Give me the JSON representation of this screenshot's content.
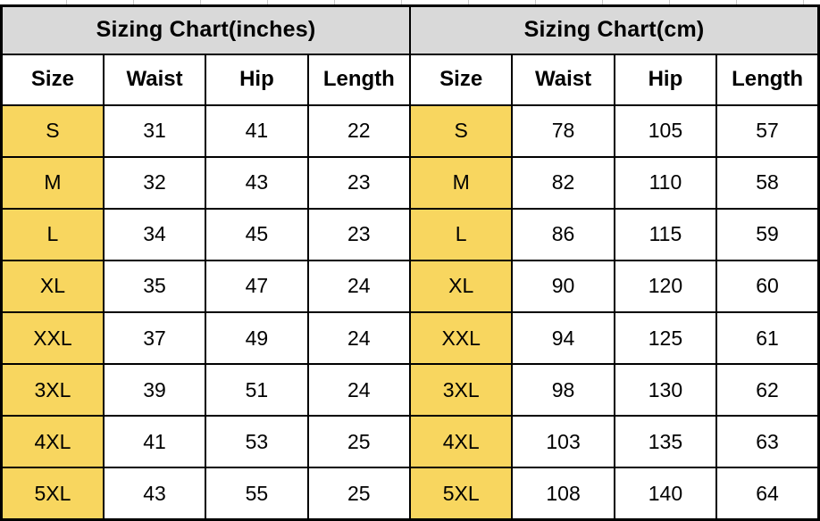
{
  "chart_data": [
    {
      "type": "table",
      "title": "Sizing Chart(inches)",
      "columns": [
        "Size",
        "Waist",
        "Hip",
        "Length"
      ],
      "rows": [
        [
          "S",
          "31",
          "41",
          "22"
        ],
        [
          "M",
          "32",
          "43",
          "23"
        ],
        [
          "L",
          "34",
          "45",
          "23"
        ],
        [
          "XL",
          "35",
          "47",
          "24"
        ],
        [
          "XXL",
          "37",
          "49",
          "24"
        ],
        [
          "3XL",
          "39",
          "51",
          "24"
        ],
        [
          "4XL",
          "41",
          "53",
          "25"
        ],
        [
          "5XL",
          "43",
          "55",
          "25"
        ]
      ]
    },
    {
      "type": "table",
      "title": "Sizing Chart(cm)",
      "columns": [
        "Size",
        "Waist",
        "Hip",
        "Length"
      ],
      "rows": [
        [
          "S",
          "78",
          "105",
          "57"
        ],
        [
          "M",
          "82",
          "110",
          "58"
        ],
        [
          "L",
          "86",
          "115",
          "59"
        ],
        [
          "XL",
          "90",
          "120",
          "60"
        ],
        [
          "XXL",
          "94",
          "125",
          "61"
        ],
        [
          "3XL",
          "98",
          "130",
          "62"
        ],
        [
          "4XL",
          "103",
          "135",
          "63"
        ],
        [
          "5XL",
          "108",
          "140",
          "64"
        ]
      ]
    }
  ],
  "colors": {
    "title_bg": "#d9d9d9",
    "size_cell_bg": "#f8d65f",
    "cell_bg": "#ffffff",
    "border": "#000000",
    "text": "#000000"
  }
}
